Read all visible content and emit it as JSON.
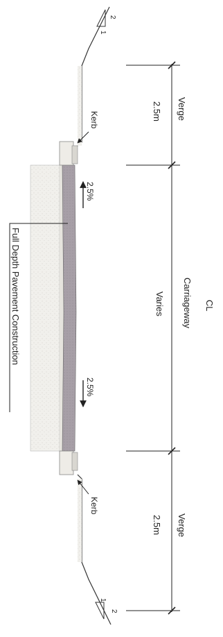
{
  "labels": {
    "verge_top": "Verge",
    "verge_top_width": "2.5m",
    "kerb_top": "Kerb",
    "carriageway": "Carriageway",
    "centerline": "CL",
    "varies": "Varies",
    "slope_upper": "2.5%",
    "slope_lower": "2.5%",
    "pavement_note": "Full Depth Pavement Construction",
    "kerb_bottom": "Kerb",
    "verge_bottom": "Verge",
    "verge_bottom_width": "2.5m",
    "batter_top_v": "2",
    "batter_top_h": "1",
    "batter_bottom_v": "1",
    "batter_bottom_h": "2"
  },
  "colors": {
    "line": "#333333",
    "asphalt": "#a8a0a8",
    "base": "#ecebe6",
    "subgrade": "#f3f2ee"
  }
}
